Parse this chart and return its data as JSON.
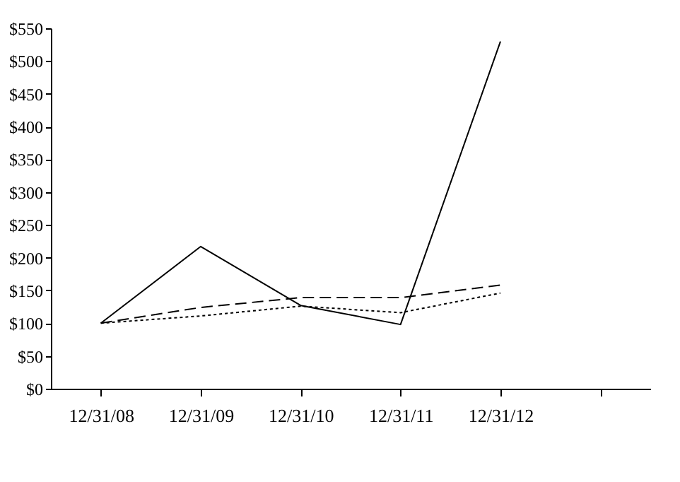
{
  "chart_data": {
    "type": "line",
    "categories": [
      "12/31/08",
      "12/31/09",
      "12/31/10",
      "12/31/11",
      "12/31/12",
      null
    ],
    "series": [
      {
        "color": "#000000",
        "line_style": "solid",
        "values": [
          100,
          217,
          127,
          98,
          530,
          null
        ]
      },
      {
        "color": "#000000",
        "line_style": "dashed",
        "values": [
          100,
          124,
          139,
          139,
          158,
          null
        ]
      },
      {
        "color": "#000000",
        "line_style": "dotted",
        "values": [
          100,
          111,
          126,
          116,
          146,
          null
        ]
      }
    ],
    "ylim": [
      0,
      550
    ],
    "yticks": [
      {
        "value": 0,
        "label": "$0"
      },
      {
        "value": 50,
        "label": "$50"
      },
      {
        "value": 100,
        "label": "$100"
      },
      {
        "value": 150,
        "label": "$150"
      },
      {
        "value": 200,
        "label": "$200"
      },
      {
        "value": 250,
        "label": "$250"
      },
      {
        "value": 300,
        "label": "$300"
      },
      {
        "value": 350,
        "label": "$350"
      },
      {
        "value": 400,
        "label": "$400"
      },
      {
        "value": 450,
        "label": "$450"
      },
      {
        "value": 500,
        "label": "$500"
      },
      {
        "value": 550,
        "label": "$550"
      }
    ],
    "marker": "none"
  }
}
